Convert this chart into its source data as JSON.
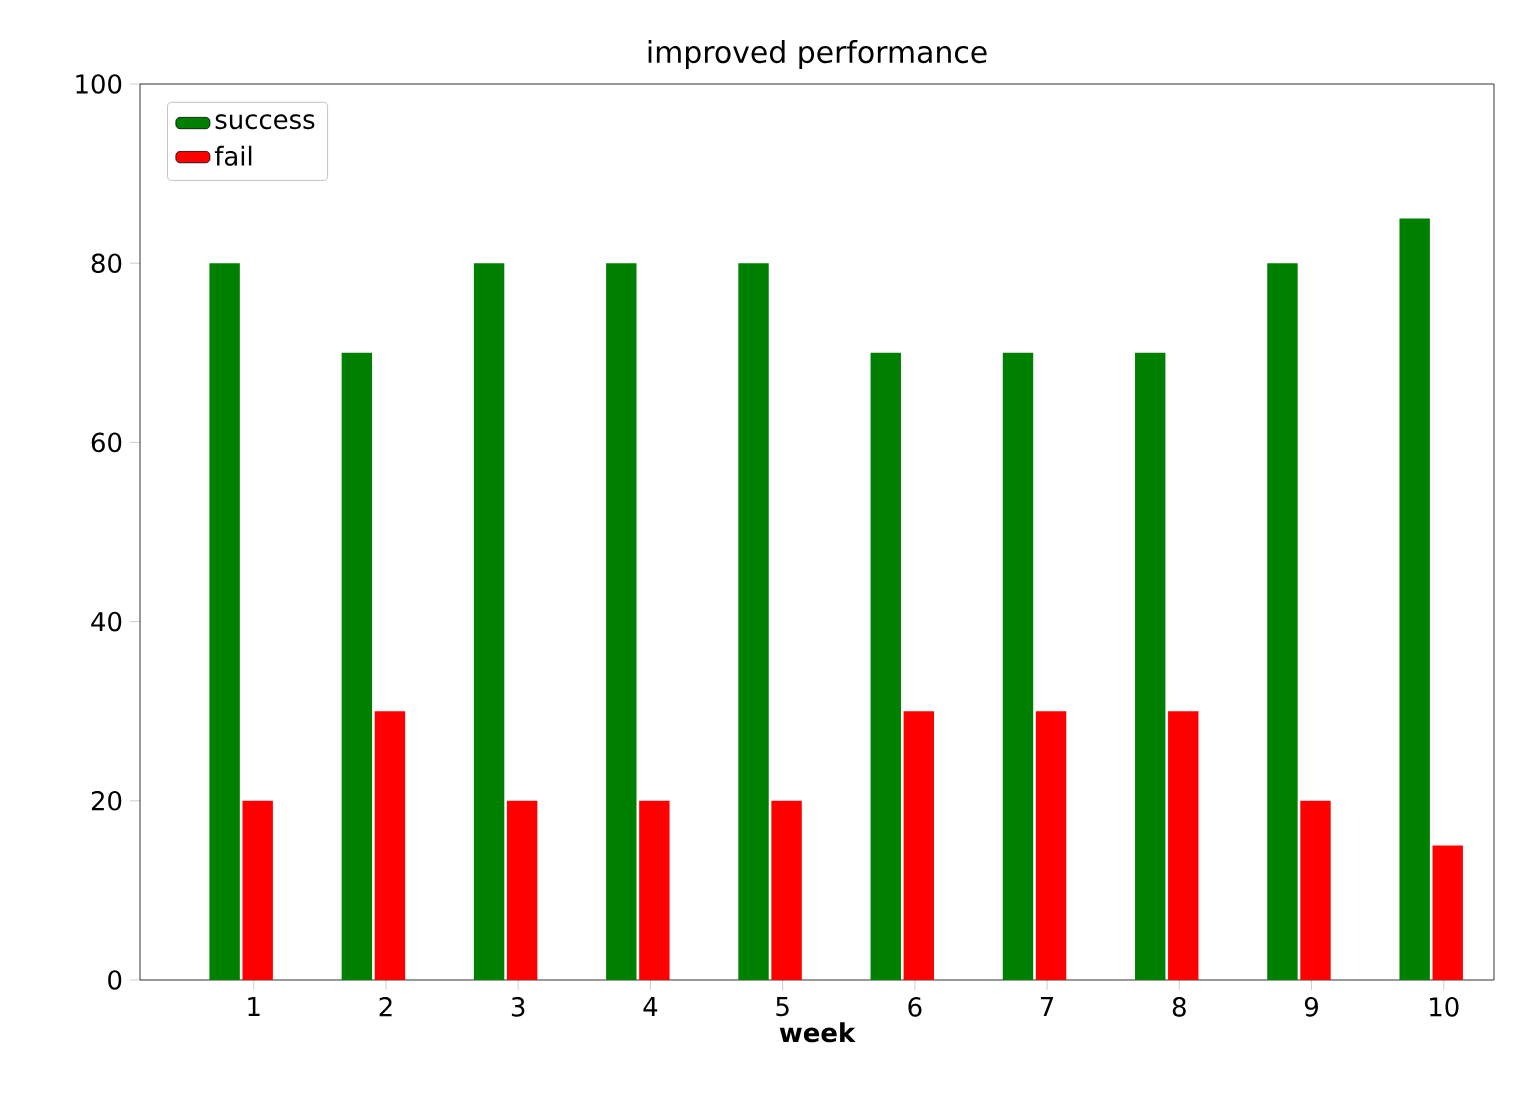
{
  "chart_data": {
    "type": "bar",
    "title": "improved performance",
    "xlabel": "week",
    "categories": [
      "1",
      "2",
      "3",
      "4",
      "5",
      "6",
      "7",
      "8",
      "9",
      "10"
    ],
    "series": [
      {
        "name": "success",
        "color": "#008000",
        "values": [
          80,
          70,
          80,
          80,
          80,
          70,
          70,
          70,
          80,
          85
        ]
      },
      {
        "name": "fail",
        "color": "#ff0000",
        "values": [
          20,
          30,
          20,
          20,
          20,
          30,
          30,
          30,
          20,
          15
        ]
      }
    ],
    "ylim": [
      0,
      100
    ],
    "yticks": [
      0,
      20,
      40,
      60,
      80,
      100
    ],
    "legend": "top left",
    "grid": false
  }
}
